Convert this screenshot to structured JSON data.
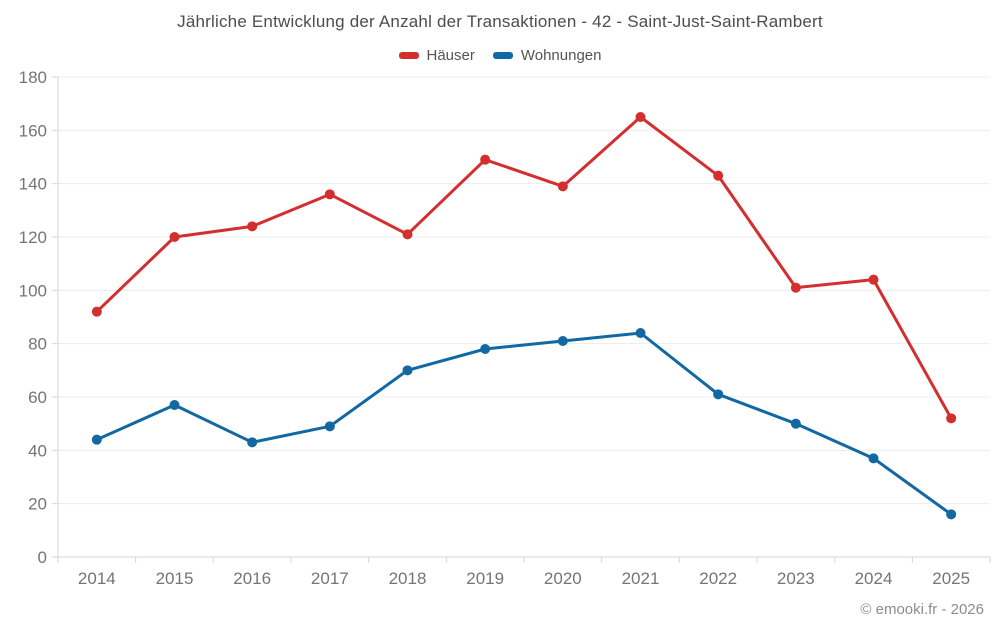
{
  "header": {
    "title": "Jährliche Entwicklung der Anzahl der Transaktionen - 42 - Saint-Just-Saint-Rambert"
  },
  "legend": {
    "items": [
      {
        "label": "Häuser",
        "color": "#d32f2f"
      },
      {
        "label": "Wohnungen",
        "color": "#1268a3"
      }
    ]
  },
  "chart_data": {
    "type": "line",
    "title": "Jährliche Entwicklung der Anzahl der Transaktionen - 42 - Saint-Just-Saint-Rambert",
    "categories": [
      "2014",
      "2015",
      "2016",
      "2017",
      "2018",
      "2019",
      "2020",
      "2021",
      "2022",
      "2023",
      "2024",
      "2025"
    ],
    "series": [
      {
        "name": "Häuser",
        "color": "#d32f2f",
        "values": [
          92,
          120,
          124,
          136,
          121,
          149,
          139,
          165,
          143,
          101,
          104,
          52
        ]
      },
      {
        "name": "Wohnungen",
        "color": "#1268a3",
        "values": [
          44,
          57,
          43,
          49,
          70,
          78,
          81,
          84,
          61,
          50,
          37,
          16
        ]
      }
    ],
    "xlabel": "",
    "ylabel": "",
    "ylim": [
      0,
      180
    ],
    "yticks": [
      0,
      20,
      40,
      60,
      80,
      100,
      120,
      140,
      160,
      180
    ],
    "grid": true,
    "legend_position": "top",
    "axis_label_color": "#757575",
    "gridline_color": "#ececec",
    "axis_line_color": "#d6d6d6"
  },
  "footer": {
    "copyright": "© emooki.fr - 2026"
  }
}
